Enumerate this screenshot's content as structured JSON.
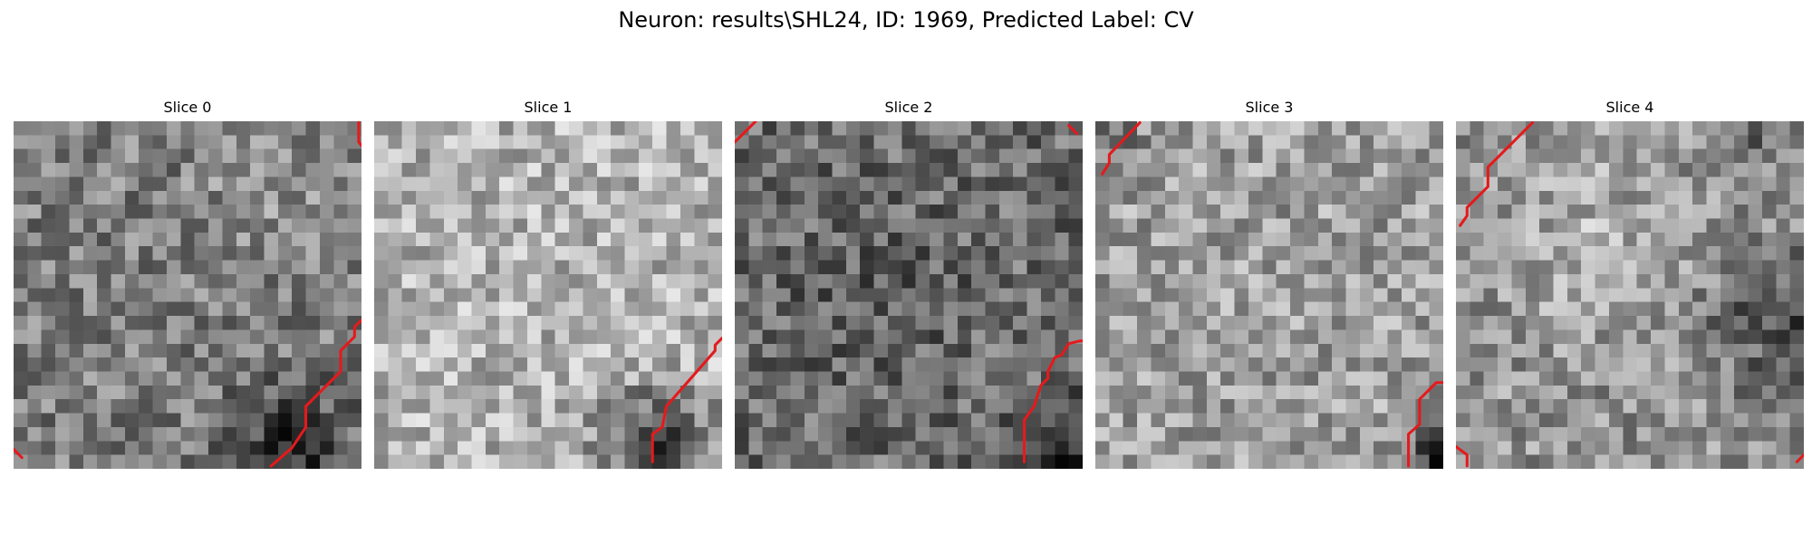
{
  "figure": {
    "title": "Neuron: results\\SHL24, ID: 1969, Predicted Label: CV"
  },
  "panels": [
    {
      "title": "Slice 0",
      "seed": 11,
      "mood": 0,
      "contour_color": "#e41a1c",
      "contours": [
        [
          [
            24.8,
            0
          ],
          [
            24.8,
            1.5
          ],
          [
            25.3,
            2.1
          ]
        ],
        [
          [
            18.5,
            24.8
          ],
          [
            20,
            23.5
          ],
          [
            21,
            22
          ],
          [
            21,
            20.5
          ],
          [
            23.5,
            18
          ],
          [
            23.5,
            16.5
          ],
          [
            24.5,
            15.5
          ],
          [
            24.5,
            14.8
          ],
          [
            25,
            14.3
          ]
        ],
        [
          [
            0,
            23.6
          ],
          [
            0.6,
            24.2
          ]
        ]
      ]
    },
    {
      "title": "Slice 1",
      "seed": 23,
      "mood": 1,
      "contour_color": "#e41a1c",
      "contours": [
        [
          [
            20,
            24.5
          ],
          [
            20,
            22.5
          ],
          [
            20.7,
            22
          ],
          [
            21,
            20.5
          ],
          [
            24.5,
            16.5
          ],
          [
            24.5,
            16.1
          ],
          [
            25,
            15.6
          ]
        ]
      ]
    },
    {
      "title": "Slice 2",
      "seed": 37,
      "mood": 2,
      "contour_color": "#e41a1c",
      "contours": [
        [
          [
            0,
            1.5
          ],
          [
            1.5,
            0
          ]
        ],
        [
          [
            24,
            0.3
          ],
          [
            24.6,
            0.9
          ]
        ],
        [
          [
            20.8,
            24.5
          ],
          [
            20.8,
            21.5
          ],
          [
            21.5,
            20.5
          ],
          [
            22,
            19
          ],
          [
            22.5,
            18.5
          ],
          [
            22.5,
            18
          ],
          [
            23,
            17
          ],
          [
            23.5,
            16.8
          ],
          [
            24,
            16
          ],
          [
            24.8,
            15.8
          ],
          [
            25,
            15.8
          ]
        ]
      ]
    },
    {
      "title": "Slice 3",
      "seed": 53,
      "mood": 3,
      "contour_color": "#e41a1c",
      "contours": [
        [
          [
            0.5,
            3.8
          ],
          [
            1,
            3
          ],
          [
            1,
            2.4
          ],
          [
            3.2,
            0.1
          ]
        ],
        [
          [
            22.5,
            24.8
          ],
          [
            22.5,
            22.5
          ],
          [
            23.3,
            21.8
          ],
          [
            23.3,
            20
          ],
          [
            24.5,
            18.8
          ],
          [
            25,
            18.8
          ]
        ]
      ]
    },
    {
      "title": "Slice 4",
      "seed": 71,
      "mood": 4,
      "contour_color": "#e41a1c",
      "contours": [
        [
          [
            0.3,
            7.5
          ],
          [
            0.8,
            6.8
          ],
          [
            0.8,
            6.2
          ],
          [
            2.3,
            4.7
          ],
          [
            2.3,
            3.3
          ],
          [
            5.5,
            0.1
          ]
        ],
        [
          [
            0,
            23.4
          ],
          [
            0.8,
            24
          ],
          [
            0.8,
            24.8
          ]
        ],
        [
          [
            24.5,
            24.5
          ],
          [
            25,
            24
          ]
        ]
      ]
    }
  ]
}
